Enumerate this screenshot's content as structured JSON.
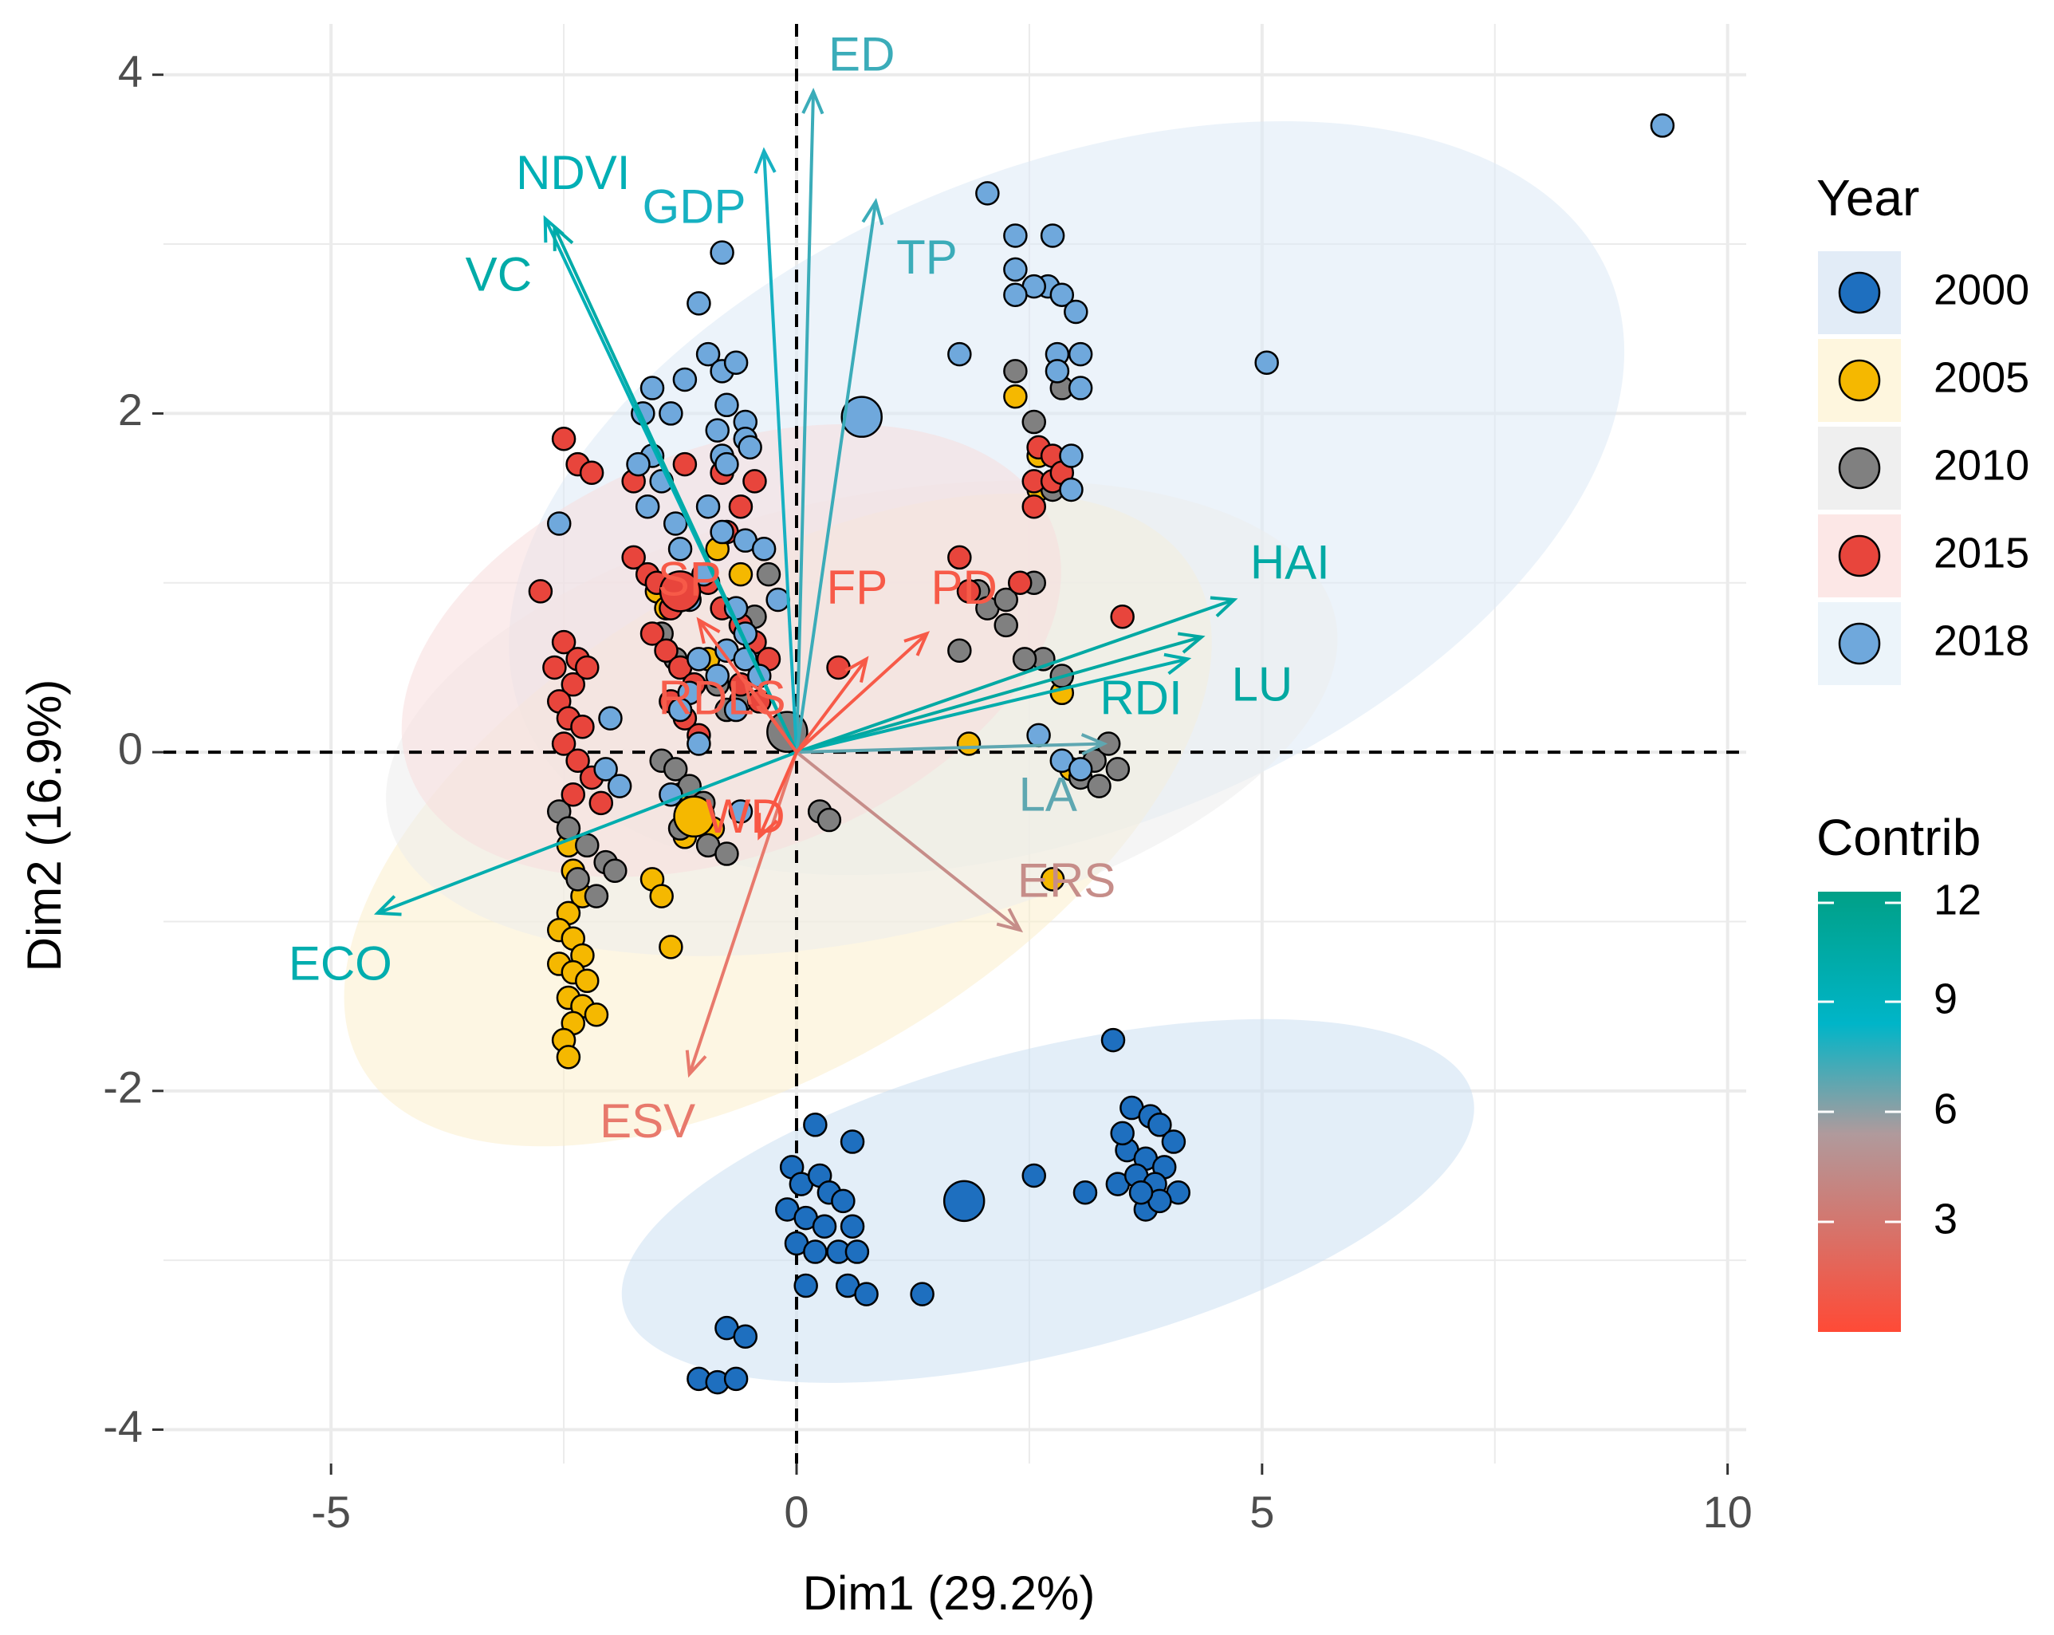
{
  "chart_data": {
    "type": "scatter",
    "subtype": "pca-biplot",
    "xlabel": "Dim1 (29.2%)",
    "ylabel": "Dim2 (16.9%)",
    "xlim": [
      -6.8,
      10.2
    ],
    "ylim": [
      -4.2,
      4.3
    ],
    "xticks": [
      -5,
      0,
      5,
      10
    ],
    "yticks": [
      -4,
      -2,
      0,
      2,
      4
    ],
    "grid": true,
    "legend_year": {
      "title": "Year",
      "position": "right",
      "entries": [
        {
          "label": "2000",
          "color": "#1e6fbf"
        },
        {
          "label": "2005",
          "color": "#f5b800"
        },
        {
          "label": "2010",
          "color": "#808080"
        },
        {
          "label": "2015",
          "color": "#e8453c"
        },
        {
          "label": "2018",
          "color": "#6fa8dc"
        }
      ]
    },
    "legend_contrib": {
      "title": "Contrib",
      "ticks": [
        12,
        9,
        6,
        3
      ],
      "range": [
        0,
        12
      ],
      "gradient_top_to_bottom": [
        "#00a087",
        "#00b5c8",
        "#b09a9c",
        "#ff4a36"
      ]
    },
    "ellipses": [
      {
        "group": "2018",
        "color": "#dce9f5",
        "cx": 2.9,
        "cy": 1.5,
        "rx": 6.3,
        "ry": 1.95,
        "angle_deg": 22
      },
      {
        "group": "2005",
        "color": "#fbefcc",
        "cx": -0.2,
        "cy": -0.4,
        "rx": 5.2,
        "ry": 1.45,
        "angle_deg": 31
      },
      {
        "group": "2010",
        "color": "#ececec",
        "cx": 0.7,
        "cy": 0.2,
        "rx": 5.2,
        "ry": 1.3,
        "angle_deg": 12
      },
      {
        "group": "2015",
        "color": "#f8dcdc",
        "cx": -0.7,
        "cy": 0.6,
        "rx": 3.7,
        "ry": 1.2,
        "angle_deg": 21
      },
      {
        "group": "2000",
        "color": "#cce0f2",
        "cx": 2.7,
        "cy": -2.65,
        "rx": 4.7,
        "ry": 0.9,
        "angle_deg": 14
      }
    ],
    "variables": [
      {
        "name": "ED",
        "x": 0.18,
        "y": 3.9,
        "contrib": 6.5,
        "label_x": 0.7,
        "label_y": 4.1
      },
      {
        "name": "GDP",
        "x": -0.35,
        "y": 3.55,
        "contrib": 6.8,
        "label_x": -1.1,
        "label_y": 3.2
      },
      {
        "name": "NDVI",
        "x": -2.7,
        "y": 3.15,
        "contrib": 8.5,
        "label_x": -2.4,
        "label_y": 3.4
      },
      {
        "name": "VC",
        "x": -2.6,
        "y": 3.1,
        "contrib": 9.5,
        "label_x": -3.2,
        "label_y": 2.8
      },
      {
        "name": "TP",
        "x": 0.85,
        "y": 3.25,
        "contrib": 6.5,
        "label_x": 1.4,
        "label_y": 2.9
      },
      {
        "name": "HAI",
        "x": 4.7,
        "y": 0.9,
        "contrib": 9.8,
        "label_x": 5.3,
        "label_y": 1.1
      },
      {
        "name": "LU",
        "x": 4.35,
        "y": 0.68,
        "contrib": 10.0,
        "label_x": 5.0,
        "label_y": 0.38
      },
      {
        "name": "RDI",
        "x": 4.2,
        "y": 0.55,
        "contrib": 9.2,
        "label_x": 3.7,
        "label_y": 0.3
      },
      {
        "name": "LA",
        "x": 3.3,
        "y": 0.05,
        "contrib": 6.2,
        "label_x": 2.7,
        "label_y": -0.27
      },
      {
        "name": "ECO",
        "x": -4.5,
        "y": -0.95,
        "contrib": 9.0,
        "label_x": -4.9,
        "label_y": -1.27
      },
      {
        "name": "ERS",
        "x": 2.4,
        "y": -1.05,
        "contrib": 4.5,
        "label_x": 2.9,
        "label_y": -0.78
      },
      {
        "name": "ESV",
        "x": -1.15,
        "y": -1.9,
        "contrib": 3.0,
        "label_x": -1.6,
        "label_y": -2.2
      },
      {
        "name": "FP",
        "x": 0.75,
        "y": 0.55,
        "contrib": 1.0,
        "label_x": 0.65,
        "label_y": 0.95
      },
      {
        "name": "PD",
        "x": 1.4,
        "y": 0.7,
        "contrib": 1.0,
        "label_x": 1.8,
        "label_y": 0.95
      },
      {
        "name": "SP",
        "x": -1.05,
        "y": 0.78,
        "contrib": 1.0,
        "label_x": -1.15,
        "label_y": 1.0
      },
      {
        "name": "RDLS",
        "x": -0.55,
        "y": 0.42,
        "contrib": 1.2,
        "label_x": -0.8,
        "label_y": 0.3
      },
      {
        "name": "WD",
        "x": -0.4,
        "y": -0.5,
        "contrib": 0.8,
        "label_x": -0.55,
        "label_y": -0.4
      }
    ],
    "centroids": [
      {
        "group": "2000",
        "x": 1.8,
        "y": -2.65
      },
      {
        "group": "2005",
        "x": -1.1,
        "y": -0.38
      },
      {
        "group": "2010",
        "x": -0.1,
        "y": 0.12
      },
      {
        "group": "2015",
        "x": -1.25,
        "y": 0.95
      },
      {
        "group": "2018",
        "x": 0.7,
        "y": 1.98
      }
    ],
    "points": {
      "2000": [
        [
          0.2,
          -2.2
        ],
        [
          0.6,
          -2.3
        ],
        [
          -0.05,
          -2.45
        ],
        [
          0.05,
          -2.55
        ],
        [
          0.25,
          -2.5
        ],
        [
          0.35,
          -2.6
        ],
        [
          0.5,
          -2.65
        ],
        [
          -0.1,
          -2.7
        ],
        [
          0.1,
          -2.75
        ],
        [
          0.3,
          -2.8
        ],
        [
          0.6,
          -2.8
        ],
        [
          0.0,
          -2.9
        ],
        [
          0.2,
          -2.95
        ],
        [
          0.45,
          -2.95
        ],
        [
          0.65,
          -2.95
        ],
        [
          0.1,
          -3.15
        ],
        [
          0.55,
          -3.15
        ],
        [
          0.75,
          -3.2
        ],
        [
          1.35,
          -3.2
        ],
        [
          -0.75,
          -3.4
        ],
        [
          -0.55,
          -3.45
        ],
        [
          -1.05,
          -3.7
        ],
        [
          -0.85,
          -3.72
        ],
        [
          -0.65,
          -3.7
        ],
        [
          2.55,
          -2.5
        ],
        [
          3.1,
          -2.6
        ],
        [
          3.4,
          -1.7
        ],
        [
          3.6,
          -2.1
        ],
        [
          3.8,
          -2.15
        ],
        [
          3.9,
          -2.2
        ],
        [
          4.05,
          -2.3
        ],
        [
          3.55,
          -2.35
        ],
        [
          3.75,
          -2.4
        ],
        [
          3.95,
          -2.45
        ],
        [
          3.45,
          -2.55
        ],
        [
          3.65,
          -2.5
        ],
        [
          3.85,
          -2.55
        ],
        [
          4.1,
          -2.6
        ],
        [
          3.75,
          -2.7
        ],
        [
          3.9,
          -2.65
        ],
        [
          3.5,
          -2.25
        ],
        [
          3.7,
          -2.6
        ]
      ],
      "2005": [
        [
          -0.85,
          1.2
        ],
        [
          -0.6,
          1.05
        ],
        [
          2.35,
          2.1
        ],
        [
          2.6,
          1.75
        ],
        [
          2.6,
          1.55
        ],
        [
          2.85,
          0.35
        ],
        [
          1.85,
          0.05
        ],
        [
          2.95,
          -0.1
        ],
        [
          2.75,
          -0.75
        ],
        [
          -2.45,
          -0.55
        ],
        [
          -2.4,
          -0.7
        ],
        [
          -2.3,
          -0.85
        ],
        [
          -2.45,
          -0.95
        ],
        [
          -2.55,
          -1.05
        ],
        [
          -2.4,
          -1.1
        ],
        [
          -2.3,
          -1.2
        ],
        [
          -2.55,
          -1.25
        ],
        [
          -2.4,
          -1.3
        ],
        [
          -2.25,
          -1.35
        ],
        [
          -2.45,
          -1.45
        ],
        [
          -2.3,
          -1.5
        ],
        [
          -2.15,
          -1.55
        ],
        [
          -2.4,
          -1.6
        ],
        [
          -2.5,
          -1.7
        ],
        [
          -2.45,
          -1.8
        ],
        [
          -1.55,
          -0.75
        ],
        [
          -1.45,
          -0.85
        ],
        [
          -1.35,
          -1.15
        ],
        [
          -1.25,
          -0.25
        ],
        [
          -1.05,
          -0.35
        ],
        [
          -0.9,
          -0.45
        ],
        [
          -1.5,
          0.95
        ],
        [
          -1.4,
          0.85
        ],
        [
          -0.95,
          0.55
        ],
        [
          -1.2,
          -0.5
        ]
      ],
      "2010": [
        [
          2.35,
          2.25
        ],
        [
          2.85,
          2.15
        ],
        [
          2.55,
          1.95
        ],
        [
          2.75,
          1.55
        ],
        [
          2.65,
          0.55
        ],
        [
          2.85,
          0.45
        ],
        [
          3.05,
          -0.15
        ],
        [
          3.25,
          -0.2
        ],
        [
          3.2,
          -0.05
        ],
        [
          3.45,
          -0.1
        ],
        [
          3.35,
          0.05
        ],
        [
          1.75,
          0.6
        ],
        [
          1.95,
          0.95
        ],
        [
          2.05,
          0.85
        ],
        [
          2.25,
          0.9
        ],
        [
          2.25,
          0.75
        ],
        [
          2.55,
          1.0
        ],
        [
          2.45,
          0.55
        ],
        [
          -2.55,
          -0.35
        ],
        [
          -2.45,
          -0.45
        ],
        [
          -2.25,
          -0.55
        ],
        [
          -2.05,
          -0.65
        ],
        [
          -2.35,
          -0.75
        ],
        [
          -2.15,
          -0.85
        ],
        [
          -1.95,
          -0.7
        ],
        [
          -1.45,
          -0.05
        ],
        [
          -1.3,
          -0.1
        ],
        [
          -1.15,
          -0.2
        ],
        [
          -1.0,
          -0.3
        ],
        [
          -0.95,
          -0.55
        ],
        [
          -0.75,
          -0.6
        ],
        [
          -1.25,
          -0.45
        ],
        [
          0.25,
          -0.35
        ],
        [
          0.35,
          -0.4
        ],
        [
          -0.3,
          1.05
        ],
        [
          -0.45,
          0.8
        ],
        [
          -0.15,
          0.15
        ],
        [
          -0.05,
          0.1
        ],
        [
          -1.45,
          0.7
        ],
        [
          -1.3,
          0.55
        ],
        [
          -0.75,
          0.25
        ],
        [
          -0.6,
          0.3
        ],
        [
          -0.85,
          0.4
        ]
      ],
      "2015": [
        [
          -2.5,
          1.85
        ],
        [
          -2.35,
          1.7
        ],
        [
          -2.2,
          1.65
        ],
        [
          -1.75,
          1.6
        ],
        [
          -1.2,
          1.7
        ],
        [
          -0.8,
          1.65
        ],
        [
          -0.45,
          1.6
        ],
        [
          -0.6,
          1.45
        ],
        [
          -0.75,
          1.3
        ],
        [
          -2.75,
          0.95
        ],
        [
          -2.5,
          0.65
        ],
        [
          -2.35,
          0.55
        ],
        [
          -2.6,
          0.5
        ],
        [
          -2.4,
          0.4
        ],
        [
          -2.25,
          0.5
        ],
        [
          -2.55,
          0.3
        ],
        [
          -2.45,
          0.2
        ],
        [
          -2.3,
          0.15
        ],
        [
          -2.5,
          0.05
        ],
        [
          -2.35,
          -0.05
        ],
        [
          -2.2,
          -0.15
        ],
        [
          -2.4,
          -0.25
        ],
        [
          -2.1,
          -0.3
        ],
        [
          -1.75,
          1.15
        ],
        [
          -1.6,
          1.05
        ],
        [
          -1.5,
          1.0
        ],
        [
          -1.35,
          0.85
        ],
        [
          -1.55,
          0.7
        ],
        [
          -1.4,
          0.6
        ],
        [
          -1.25,
          0.5
        ],
        [
          -1.1,
          0.4
        ],
        [
          -1.35,
          0.3
        ],
        [
          -1.2,
          0.2
        ],
        [
          -1.05,
          0.1
        ],
        [
          -0.95,
          1.0
        ],
        [
          -0.8,
          0.85
        ],
        [
          -0.6,
          0.75
        ],
        [
          -0.45,
          0.65
        ],
        [
          -0.3,
          0.55
        ],
        [
          -0.6,
          0.4
        ],
        [
          -0.4,
          0.3
        ],
        [
          0.45,
          0.5
        ],
        [
          1.75,
          1.15
        ],
        [
          1.85,
          0.95
        ],
        [
          2.4,
          1.0
        ],
        [
          2.6,
          1.8
        ],
        [
          2.75,
          1.75
        ],
        [
          2.55,
          1.6
        ],
        [
          2.75,
          1.6
        ],
        [
          2.85,
          1.65
        ],
        [
          3.5,
          0.8
        ],
        [
          2.55,
          1.45
        ]
      ],
      "2018": [
        [
          9.3,
          3.7
        ],
        [
          5.05,
          2.3
        ],
        [
          2.05,
          3.3
        ],
        [
          2.35,
          3.05
        ],
        [
          2.75,
          3.05
        ],
        [
          2.35,
          2.85
        ],
        [
          2.7,
          2.75
        ],
        [
          2.55,
          2.75
        ],
        [
          2.85,
          2.7
        ],
        [
          2.35,
          2.7
        ],
        [
          3.0,
          2.6
        ],
        [
          2.8,
          2.35
        ],
        [
          3.05,
          2.35
        ],
        [
          2.8,
          2.25
        ],
        [
          3.05,
          2.15
        ],
        [
          2.95,
          1.75
        ],
        [
          2.95,
          1.55
        ],
        [
          1.75,
          2.35
        ],
        [
          -0.8,
          2.95
        ],
        [
          -1.05,
          2.65
        ],
        [
          -0.95,
          2.35
        ],
        [
          -0.8,
          2.25
        ],
        [
          -0.65,
          2.3
        ],
        [
          -1.2,
          2.2
        ],
        [
          -1.55,
          2.15
        ],
        [
          -0.75,
          2.05
        ],
        [
          -0.55,
          1.95
        ],
        [
          -0.85,
          1.9
        ],
        [
          -1.35,
          2.0
        ],
        [
          -1.65,
          2.0
        ],
        [
          -0.8,
          1.75
        ],
        [
          -0.55,
          1.85
        ],
        [
          -0.75,
          1.7
        ],
        [
          -0.5,
          1.8
        ],
        [
          -1.55,
          1.75
        ],
        [
          -1.7,
          1.7
        ],
        [
          -1.45,
          1.6
        ],
        [
          -1.6,
          1.45
        ],
        [
          -1.3,
          1.35
        ],
        [
          -0.95,
          1.45
        ],
        [
          -0.8,
          1.3
        ],
        [
          -0.55,
          1.25
        ],
        [
          -0.35,
          1.2
        ],
        [
          -2.55,
          1.35
        ],
        [
          -1.25,
          1.2
        ],
        [
          -1.0,
          1.05
        ],
        [
          -1.15,
          0.9
        ],
        [
          -1.05,
          0.55
        ],
        [
          -0.75,
          0.6
        ],
        [
          -0.55,
          0.55
        ],
        [
          -0.85,
          0.45
        ],
        [
          -0.65,
          0.25
        ],
        [
          -1.15,
          0.35
        ],
        [
          -1.25,
          0.25
        ],
        [
          -1.05,
          0.05
        ],
        [
          -2.0,
          0.2
        ],
        [
          -2.05,
          -0.1
        ],
        [
          -1.9,
          -0.2
        ],
        [
          -1.35,
          -0.25
        ],
        [
          -0.6,
          -0.35
        ],
        [
          2.85,
          -0.05
        ],
        [
          3.05,
          -0.1
        ],
        [
          2.6,
          0.1
        ],
        [
          -0.2,
          0.9
        ],
        [
          -0.55,
          0.7
        ],
        [
          -0.4,
          0.45
        ],
        [
          -0.65,
          0.85
        ]
      ]
    }
  }
}
